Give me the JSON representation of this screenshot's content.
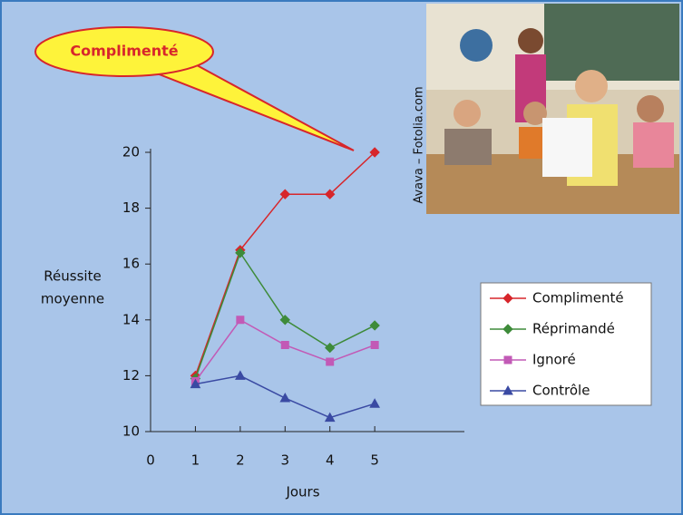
{
  "chart_data": {
    "type": "line",
    "callout": "Complimenté",
    "photo_credit": "Avava – Fotolia.com",
    "ylabel_lines": [
      "Réussite",
      "moyenne"
    ],
    "xlabel": "Jours",
    "x": [
      1,
      2,
      3,
      4,
      5
    ],
    "xlim": [
      0,
      7
    ],
    "xticks": [
      0,
      1,
      2,
      3,
      4,
      5
    ],
    "ylim": [
      10,
      20
    ],
    "yticks": [
      10,
      12,
      14,
      16,
      18,
      20
    ],
    "series": [
      {
        "name": "Complimenté",
        "color": "#d7262b",
        "marker": "diamond",
        "values": [
          12,
          16.5,
          18.5,
          18.5,
          20
        ]
      },
      {
        "name": "Réprimandé",
        "color": "#3e8b3a",
        "marker": "diamond",
        "values": [
          11.9,
          16.4,
          14,
          13,
          13.8
        ]
      },
      {
        "name": "Ignoré",
        "color": "#c25ab6",
        "marker": "square",
        "values": [
          11.8,
          14,
          13.1,
          12.5,
          13.1
        ]
      },
      {
        "name": "Contrôle",
        "color": "#3a4aa3",
        "marker": "triangle",
        "values": [
          11.7,
          12,
          11.2,
          10.5,
          11
        ]
      }
    ]
  }
}
